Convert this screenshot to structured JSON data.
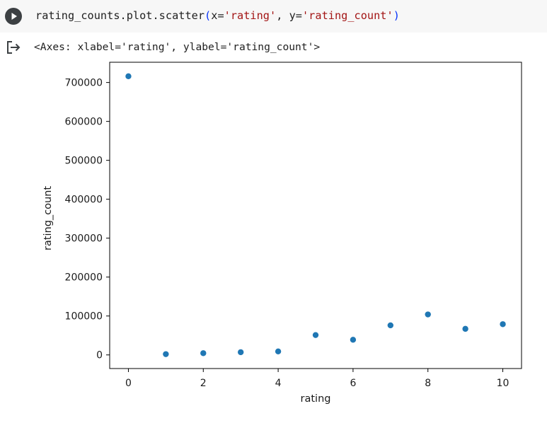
{
  "code_cell": {
    "code_prefix": "rating_counts.plot.scatter",
    "open_paren": "(",
    "arg1_name": "x=",
    "arg1_value": "'rating'",
    "separator": ", ",
    "arg2_name": "y=",
    "arg2_value": "'rating_count'",
    "close_paren": ")"
  },
  "output": {
    "repr_text": "<Axes: xlabel='rating', ylabel='rating_count'>"
  },
  "colors": {
    "marker": "#1f77b4",
    "run_button": "#3c4043",
    "code_background": "#f7f7f7",
    "string_literal": "#a31515",
    "parenthesis": "#0431fa"
  },
  "icons": {
    "run": "play-circle-icon",
    "output": "output-redirect-icon"
  },
  "chart_data": {
    "type": "scatter",
    "xlabel": "rating",
    "ylabel": "rating_count",
    "x": [
      0,
      1,
      2,
      3,
      4,
      5,
      6,
      7,
      8,
      9,
      10
    ],
    "y": [
      716000,
      2000,
      4500,
      7000,
      9000,
      51000,
      39000,
      76000,
      104000,
      67000,
      79000
    ],
    "xlim": [
      -0.5,
      10.5
    ],
    "ylim": [
      -35000,
      752000
    ],
    "xticks": [
      0,
      2,
      4,
      6,
      8,
      10
    ],
    "xtick_labels": [
      "0",
      "2",
      "4",
      "6",
      "8",
      "10"
    ],
    "yticks": [
      0,
      100000,
      200000,
      300000,
      400000,
      500000,
      600000,
      700000
    ],
    "ytick_labels": [
      "0",
      "100000",
      "200000",
      "300000",
      "400000",
      "500000",
      "600000",
      "700000"
    ],
    "grid": false,
    "legend": false
  }
}
